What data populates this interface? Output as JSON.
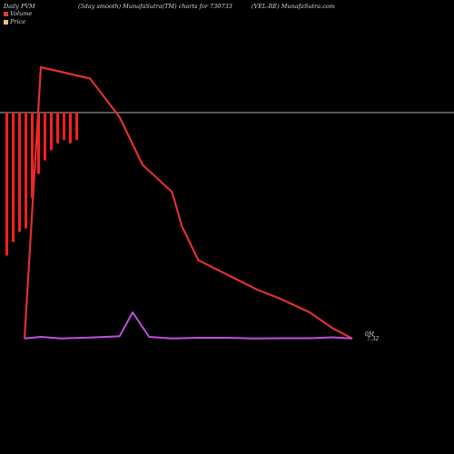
{
  "header": {
    "left": "Daily PVM",
    "center": "(5day smooth) MunafaSutra(TM) charts for 730733",
    "right": "(VEL-RE) MunafaSutra.com"
  },
  "legend": [
    {
      "label": "Volume",
      "color": "#d84040"
    },
    {
      "label": "Price",
      "color": "#f0c080"
    }
  ],
  "colors": {
    "volume_bars": "#ff1f1f",
    "price_line": "#e03030",
    "pvm_line": "#c050e0",
    "zero_line": "#b0b0b0"
  },
  "chart_data": {
    "type": "line",
    "title": "",
    "xlabel": "",
    "ylabel": "",
    "end_labels": [
      "0M",
      "7.32"
    ],
    "ylim": [
      0,
      100
    ],
    "series": [
      {
        "name": "Price",
        "x": [
          0,
          5,
          20,
          29,
          36,
          45,
          48,
          53,
          71,
          78,
          87,
          94,
          100
        ],
        "values": [
          0.5,
          120,
          115,
          98,
          77,
          65,
          50,
          35,
          22,
          18,
          12,
          5,
          0.5
        ]
      },
      {
        "name": "PVM",
        "x": [
          0,
          5,
          11,
          20,
          29,
          33,
          38,
          45,
          53,
          62,
          70,
          79,
          87,
          94,
          100
        ],
        "values": [
          0.5,
          1.2,
          0.5,
          0.9,
          1.5,
          12,
          1.2,
          0.5,
          0.8,
          0.8,
          0.5,
          0.6,
          0.6,
          1.0,
          0.5
        ]
      }
    ],
    "volume_bars": [
      {
        "x": 0,
        "value": 42
      },
      {
        "x": 1,
        "value": 38
      },
      {
        "x": 2,
        "value": 35
      },
      {
        "x": 3,
        "value": 34
      },
      {
        "x": 4,
        "value": 25
      },
      {
        "x": 5,
        "value": 18
      },
      {
        "x": 6,
        "value": 14
      },
      {
        "x": 7,
        "value": 11
      },
      {
        "x": 8,
        "value": 9
      },
      {
        "x": 9,
        "value": 8
      },
      {
        "x": 10,
        "value": 9
      },
      {
        "x": 11,
        "value": 8
      }
    ]
  }
}
